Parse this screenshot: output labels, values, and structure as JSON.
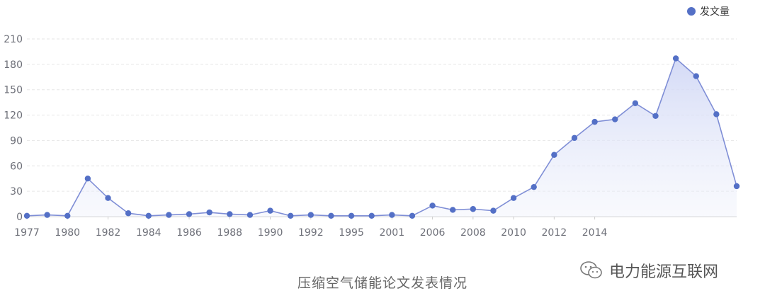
{
  "legend": {
    "label": "发文量"
  },
  "caption": "压缩空气储能论文发表情况",
  "watermark": {
    "text": "电力能源互联网",
    "icon": "wechat-icon"
  },
  "colors": {
    "series": "#5470c6",
    "area_top": "#cfd6f5",
    "grid": "#e6e6e6",
    "axis_text": "#6e7079"
  },
  "chart_data": {
    "type": "area",
    "title": "压缩空气储能论文发表情况",
    "xlabel": "",
    "ylabel": "",
    "ylim": [
      0,
      210
    ],
    "yticks": [
      0,
      30,
      60,
      90,
      120,
      150,
      180,
      210
    ],
    "x_tick_labels": [
      "1977",
      "1980",
      "1982",
      "1984",
      "1986",
      "1988",
      "1990",
      "1992",
      "1995",
      "2001",
      "2006",
      "2008",
      "2010",
      "2012",
      "2014"
    ],
    "grid": true,
    "legend_position": "top-right",
    "series": [
      {
        "name": "发文量",
        "values": [
          1,
          2,
          1,
          45,
          22,
          4,
          1,
          2,
          3,
          5,
          3,
          2,
          7,
          1,
          2,
          1,
          1,
          1,
          2,
          1,
          13,
          8,
          9,
          7,
          22,
          35,
          73,
          93,
          112,
          115,
          134,
          119,
          187,
          166,
          121,
          36
        ]
      }
    ]
  }
}
